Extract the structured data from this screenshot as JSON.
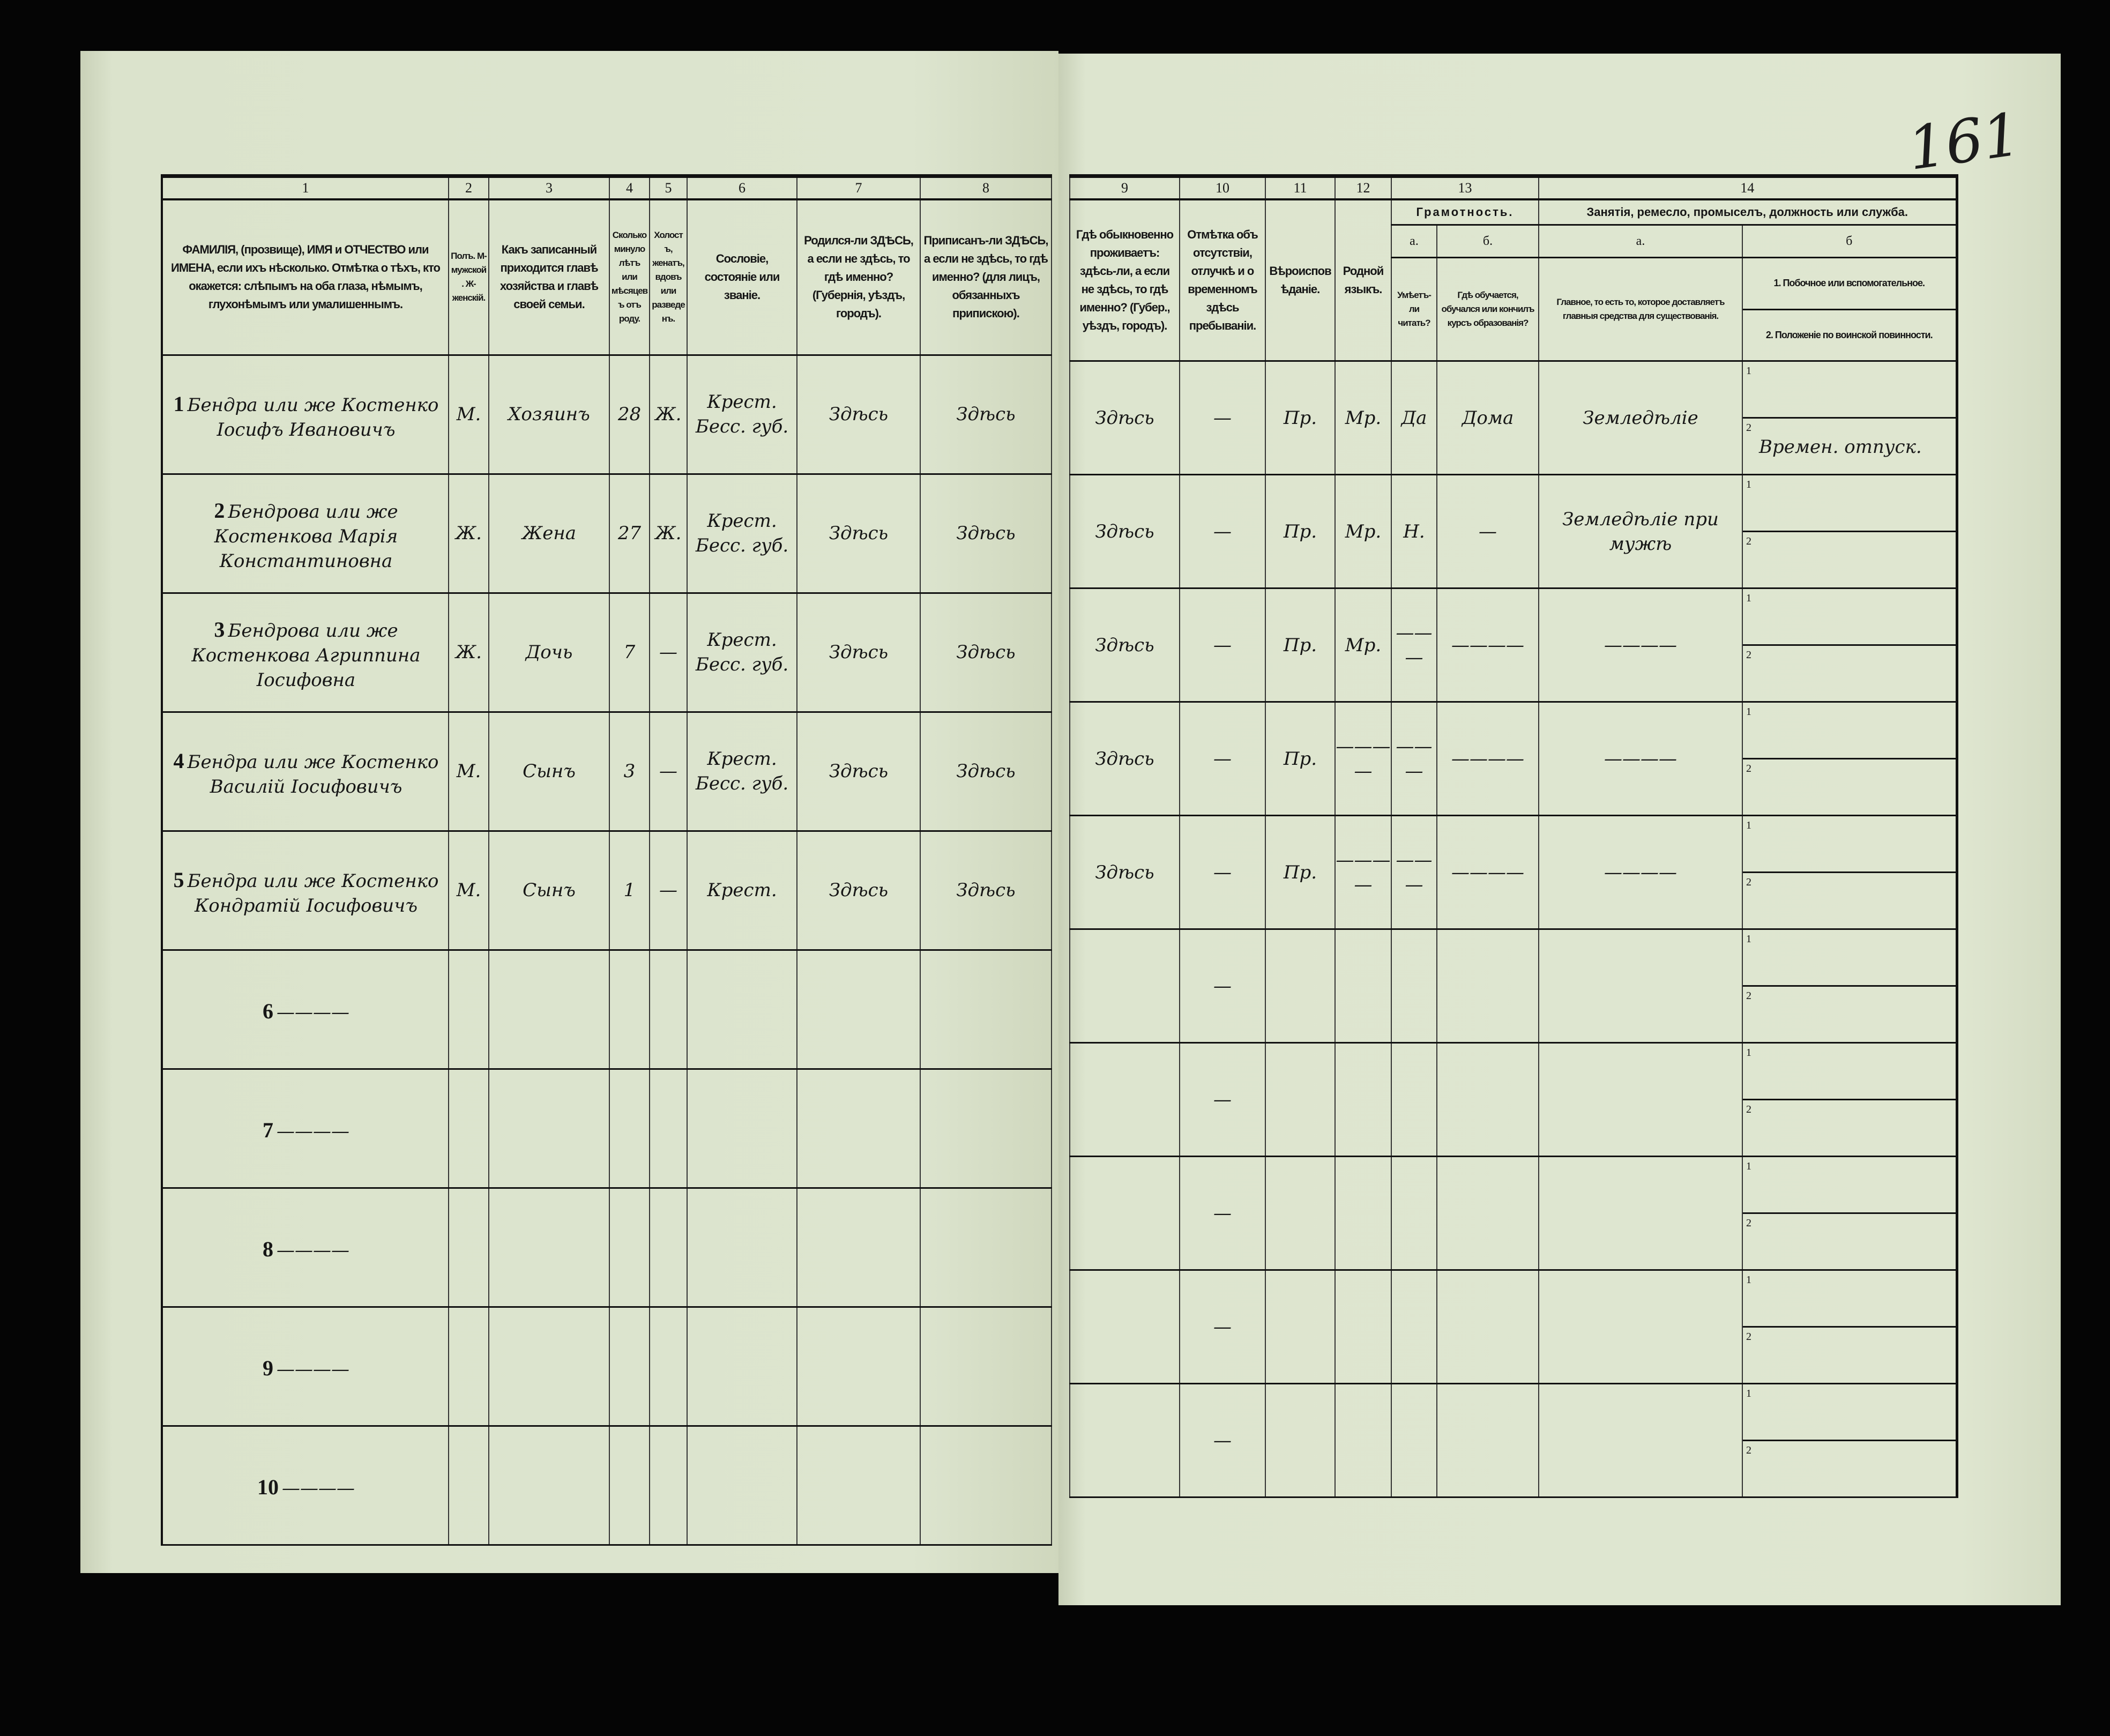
{
  "page_number": "161",
  "left_columns": [
    {
      "num": "1",
      "title": "ФАМИЛІЯ, (прозвище), ИМЯ и ОТЧЕСТВО или ИМЕНА, если ихъ нѣсколько. Отмѣтка о тѣхъ, кто окажется: слѣпымъ на оба глаза, нѣмымъ, глухонѣмымъ или умалишеннымъ."
    },
    {
      "num": "2",
      "title": "Полъ. М-мужской. Ж-женскій."
    },
    {
      "num": "3",
      "title": "Какъ записанный приходится главѣ хозяйства и главѣ своей семьи."
    },
    {
      "num": "4",
      "title": "Сколько минуло лѣтъ или мѣсяцевъ отъ роду."
    },
    {
      "num": "5",
      "title": "Холостъ, женатъ, вдовъ или разведенъ."
    },
    {
      "num": "6",
      "title": "Сословіе, состояніе или званіе."
    },
    {
      "num": "7",
      "title": "Родился-ли ЗДѢСЬ, а если не здѣсь, то гдѣ именно? (Губернія, уѣздъ, городъ)."
    },
    {
      "num": "8",
      "title": "Приписанъ-ли ЗДѢСЬ, а если не здѣсь, то гдѣ именно? (для лицъ, обязанныхъ припискою)."
    }
  ],
  "right_columns": {
    "c9": {
      "num": "9",
      "title": "Гдѣ обыкновенно проживаетъ: здѣсь-ли, а если не здѣсь, то гдѣ именно? (Губер., уѣздъ, городъ)."
    },
    "c10": {
      "num": "10",
      "title": "Отмѣтка объ отсутствіи, отлучкѣ и о временномъ здѣсь пребываніи."
    },
    "c11": {
      "num": "11",
      "title": "Вѣроисповѣданіе."
    },
    "c12": {
      "num": "12",
      "title": "Родной языкъ."
    },
    "c13": {
      "num": "13",
      "title": "Грамотность.",
      "a_label": "а.",
      "a_title": "Умѣетъ-ли читать?",
      "b_label": "б.",
      "b_title": "Гдѣ обучается, обучался или кончилъ курсъ образованія?"
    },
    "c14": {
      "num": "14",
      "title": "Занятія, ремесло, промыселъ, должность или служба.",
      "a_label": "а.",
      "a_title": "Главное, то есть то, которое доставляетъ главныя средства для существованія.",
      "b_label": "б",
      "b1_title": "1. Побочное или вспомогательное.",
      "b2_title": "2. Положеніе по воинской повинности."
    }
  },
  "rows": [
    {
      "n": "1",
      "name": "Бендра или же Костенко Іосифъ Ивановичъ",
      "sex": "М.",
      "relation": "Хозяинъ",
      "age": "28",
      "marital": "Ж.",
      "estate": "Крест. Бесс. губ.",
      "born": "Здѣсь",
      "registered": "Здѣсь",
      "residence": "Здѣсь",
      "absence": "—",
      "religion": "Пр.",
      "language": "Мр.",
      "lit_a": "Да",
      "lit_b": "Дома",
      "occ_a": "Земледѣліе",
      "occ_b1": "",
      "occ_b2": "Времен. отпуск.",
      "sub1": "1",
      "sub2": "2"
    },
    {
      "n": "2",
      "name": "Бендрова или же Костенкова Марія Константиновна",
      "sex": "Ж.",
      "relation": "Жена",
      "age": "27",
      "marital": "Ж.",
      "estate": "Крест. Бесс. губ.",
      "born": "Здѣсь",
      "registered": "Здѣсь",
      "residence": "Здѣсь",
      "absence": "—",
      "religion": "Пр.",
      "language": "Мр.",
      "lit_a": "Н.",
      "lit_b": "—",
      "occ_a": "Земледѣліе при мужѣ",
      "occ_b1": "",
      "occ_b2": "",
      "sub1": "1",
      "sub2": "2"
    },
    {
      "n": "3",
      "name": "Бендрова или же Костенкова Агриппина Іосифовна",
      "sex": "Ж.",
      "relation": "Дочь",
      "age": "7",
      "marital": "—",
      "estate": "Крест. Бесс. губ.",
      "born": "Здѣсь",
      "registered": "Здѣсь",
      "residence": "Здѣсь",
      "absence": "—",
      "religion": "Пр.",
      "language": "Мр.",
      "lit_a": "———",
      "lit_b": "————",
      "occ_a": "————",
      "occ_b1": "",
      "occ_b2": "",
      "sub1": "1",
      "sub2": "2"
    },
    {
      "n": "4",
      "name": "Бендра или же Костенко Василій Іосифовичъ",
      "sex": "М.",
      "relation": "Сынъ",
      "age": "3",
      "marital": "—",
      "estate": "Крест. Бесс. губ.",
      "born": "Здѣсь",
      "registered": "Здѣсь",
      "residence": "Здѣсь",
      "absence": "—",
      "religion": "Пр.",
      "language": "————",
      "lit_a": "———",
      "lit_b": "————",
      "occ_a": "————",
      "occ_b1": "",
      "occ_b2": "",
      "sub1": "1",
      "sub2": "2"
    },
    {
      "n": "5",
      "name": "Бендра или же Костенко Кондратій Іосифовичъ",
      "sex": "М.",
      "relation": "Сынъ",
      "age": "1",
      "marital": "—",
      "estate": "Крест.",
      "born": "Здѣсь",
      "registered": "Здѣсь",
      "residence": "Здѣсь",
      "absence": "—",
      "religion": "Пр.",
      "language": "————",
      "lit_a": "———",
      "lit_b": "————",
      "occ_a": "————",
      "occ_b1": "",
      "occ_b2": "",
      "sub1": "1",
      "sub2": "2"
    },
    {
      "n": "6",
      "name": "————",
      "absence": "—",
      "sub1": "1",
      "sub2": "2"
    },
    {
      "n": "7",
      "name": "————",
      "absence": "—",
      "sub1": "1",
      "sub2": "2"
    },
    {
      "n": "8",
      "name": "————",
      "absence": "—",
      "sub1": "1",
      "sub2": "2"
    },
    {
      "n": "9",
      "name": "————",
      "absence": "—",
      "sub1": "1",
      "sub2": "2"
    },
    {
      "n": "10",
      "name": "————",
      "absence": "—",
      "sub1": "1",
      "sub2": "2"
    }
  ]
}
